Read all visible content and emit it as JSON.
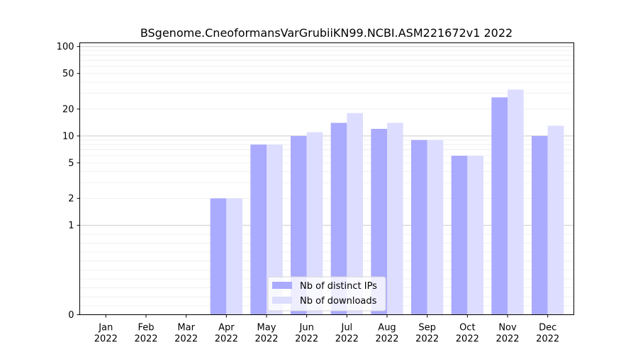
{
  "chart_data": {
    "type": "bar",
    "title": "BSgenome.CneoformansVarGrubiiKN99.NCBI.ASM221672v1 2022",
    "xlabel": "",
    "ylabel": "",
    "y_scale": "symlog",
    "ylim": [
      0,
      110
    ],
    "grid": "horizontal",
    "legend_position": "bottom-center",
    "y_ticks": [
      0,
      1,
      2,
      5,
      10,
      20,
      50,
      100
    ],
    "categories": [
      "Jan\n2022",
      "Feb\n2022",
      "Mar\n2022",
      "Apr\n2022",
      "May\n2022",
      "Jun\n2022",
      "Jul\n2022",
      "Aug\n2022",
      "Sep\n2022",
      "Oct\n2022",
      "Nov\n2022",
      "Dec\n2022"
    ],
    "series": [
      {
        "name": "Nb of distinct IPs",
        "color": "#aaaaff",
        "values": [
          0,
          0,
          0,
          2,
          8,
          10,
          14,
          12,
          9,
          6,
          27,
          10
        ]
      },
      {
        "name": "Nb of downloads",
        "color": "#ddddff",
        "values": [
          0,
          0,
          0,
          2,
          8,
          11,
          18,
          14,
          9,
          6,
          33,
          13
        ]
      }
    ]
  }
}
